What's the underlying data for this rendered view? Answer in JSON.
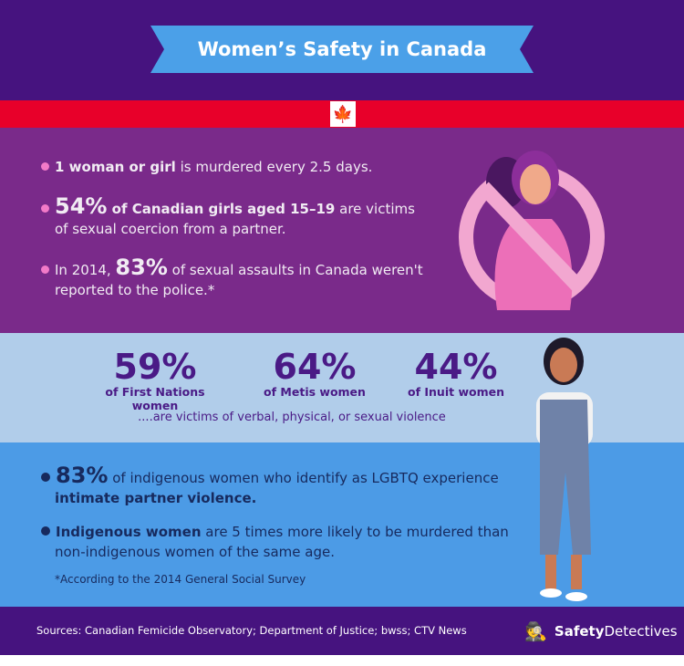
{
  "title": "Women’s Safety in Canada",
  "colors": {
    "top": "#46137f",
    "red": "#e8002a",
    "purple": "#7a2a8a",
    "light_blue": "#b1cdea",
    "blue": "#4c9be6",
    "banner": "#4ba0e8"
  },
  "facts1": [
    {
      "bold": "1 woman or girl",
      "text": " is murdered every 2.5 days."
    },
    {
      "big": "54%",
      "bold": " of Canadian girls aged 15–19",
      "text": " are victims",
      "line2": "of sexual coercion from a partner."
    },
    {
      "pre": "In 2014, ",
      "big": "83%",
      "text": " of sexual assaults in Canada weren't",
      "line2": "reported to the police.*"
    }
  ],
  "stats": [
    {
      "value": "59%",
      "label": "of First Nations women"
    },
    {
      "value": "64%",
      "label": "of Metis women"
    },
    {
      "value": "44%",
      "label": "of Inuit women"
    }
  ],
  "victims_text": "....are victims of verbal, physical, or sexual violence",
  "facts2": [
    {
      "big": "83%",
      "text": " of indigenous women who identify as LGBTQ experience",
      "line2": "intimate partner violence."
    },
    {
      "bold": "Indigenous women",
      "text": " are 5 times more likely to be murdered than",
      "line2": "non-indigenous women of the same age."
    }
  ],
  "note": "*According to the 2014 General Social Survey",
  "sources": "Sources: Canadian Femicide Observatory; Department of Justice; bwss; CTV News",
  "logo": {
    "a": "Safety",
    "b": "Detectives"
  },
  "icons": [
    "maple-leaf-icon",
    "prohibition-icon",
    "detective-logo-icon"
  ]
}
